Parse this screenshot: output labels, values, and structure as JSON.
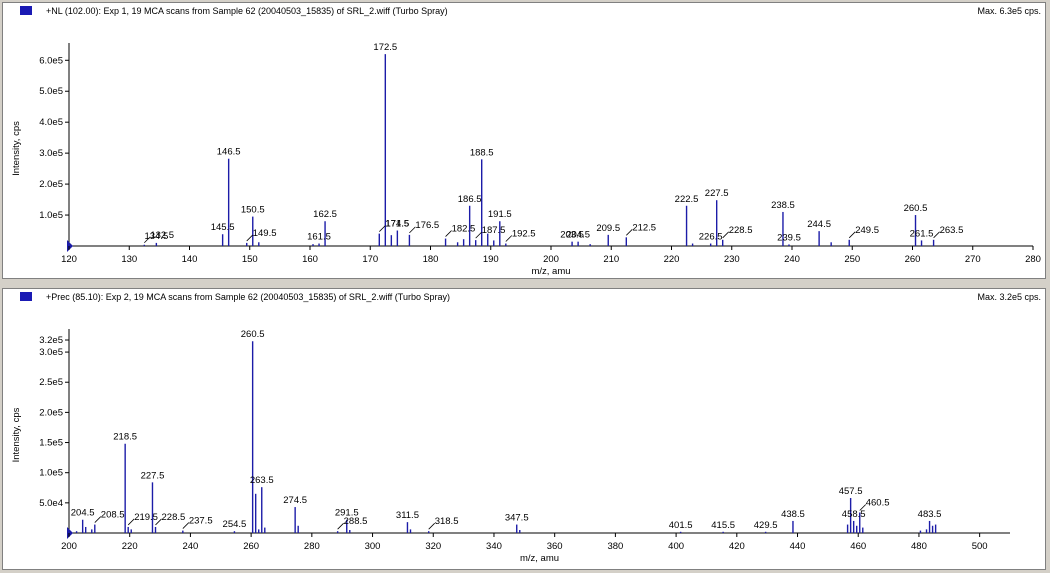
{
  "colors": {
    "peak": "#1c1ca8",
    "panel_bg": "#ffffff",
    "window_bg": "#d4d0c8"
  },
  "panels": [
    {
      "title": "+NL (102.00): Exp 1, 19 MCA scans from Sample 62 (20040503_15835) of SRL_2.wiff (Turbo Spray)",
      "max_label": "Max. 6.3e5 cps.",
      "icon": "spectrum-color-swatch-icon"
    },
    {
      "title": "+Prec (85.10): Exp 2, 19 MCA scans from Sample 62 (20040503_15835) of SRL_2.wiff (Turbo Spray)",
      "max_label": "Max. 3.2e5 cps.",
      "icon": "spectrum-color-swatch-icon"
    }
  ],
  "chart_data": [
    {
      "type": "bar",
      "xlabel": "m/z, amu",
      "ylabel": "Intensity, cps",
      "xlim": [
        120,
        280
      ],
      "ylim": [
        0,
        630000
      ],
      "x_ticks": [
        120,
        130,
        140,
        150,
        160,
        170,
        180,
        190,
        200,
        210,
        220,
        230,
        240,
        250,
        260,
        270,
        280
      ],
      "y_ticks": [
        100000,
        200000,
        300000,
        400000,
        500000,
        600000
      ],
      "y_tick_labels": [
        "1.0e5",
        "2.0e5",
        "3.0e5",
        "4.0e5",
        "5.0e5",
        "6.0e5"
      ],
      "peaks": [
        {
          "x": 132.5,
          "y": 4000
        },
        {
          "x": 134.5,
          "y": 10000
        },
        {
          "x": 145.5,
          "y": 38000
        },
        {
          "x": 146.5,
          "y": 282000
        },
        {
          "x": 149.5,
          "y": 10000
        },
        {
          "x": 150.5,
          "y": 95000
        },
        {
          "x": 151.5,
          "y": 12000
        },
        {
          "x": 160.5,
          "y": 6000
        },
        {
          "x": 161.5,
          "y": 8000
        },
        {
          "x": 162.5,
          "y": 80000
        },
        {
          "x": 171.5,
          "y": 40000
        },
        {
          "x": 172.5,
          "y": 620000
        },
        {
          "x": 173.5,
          "y": 35000
        },
        {
          "x": 174.5,
          "y": 50000
        },
        {
          "x": 176.5,
          "y": 36000
        },
        {
          "x": 182.5,
          "y": 24000
        },
        {
          "x": 184.5,
          "y": 12000
        },
        {
          "x": 185.5,
          "y": 22000
        },
        {
          "x": 186.5,
          "y": 130000
        },
        {
          "x": 187.5,
          "y": 19000
        },
        {
          "x": 188.5,
          "y": 280000
        },
        {
          "x": 189.5,
          "y": 40000
        },
        {
          "x": 190.5,
          "y": 18000
        },
        {
          "x": 191.5,
          "y": 80000
        },
        {
          "x": 192.5,
          "y": 8000
        },
        {
          "x": 203.5,
          "y": 14000
        },
        {
          "x": 204.5,
          "y": 14000
        },
        {
          "x": 206.5,
          "y": 6000
        },
        {
          "x": 209.5,
          "y": 36000
        },
        {
          "x": 212.5,
          "y": 28000
        },
        {
          "x": 222.5,
          "y": 130000
        },
        {
          "x": 223.5,
          "y": 8000
        },
        {
          "x": 226.5,
          "y": 8000
        },
        {
          "x": 227.5,
          "y": 148000
        },
        {
          "x": 228.5,
          "y": 20000
        },
        {
          "x": 238.5,
          "y": 110000
        },
        {
          "x": 239.5,
          "y": 5000
        },
        {
          "x": 244.5,
          "y": 48000
        },
        {
          "x": 246.5,
          "y": 12000
        },
        {
          "x": 249.5,
          "y": 20000
        },
        {
          "x": 260.5,
          "y": 100000
        },
        {
          "x": 261.5,
          "y": 18000
        },
        {
          "x": 263.5,
          "y": 20000
        }
      ],
      "labels": [
        {
          "x": 132.5,
          "text": "132.5",
          "leader": true
        },
        {
          "x": 134.5,
          "text": "134.5"
        },
        {
          "x": 145.5,
          "text": "145.5"
        },
        {
          "x": 146.5,
          "text": "146.5"
        },
        {
          "x": 149.5,
          "text": "149.5",
          "leader": true
        },
        {
          "x": 150.5,
          "text": "150.5"
        },
        {
          "x": 161.5,
          "text": "161.5"
        },
        {
          "x": 162.5,
          "text": "162.5"
        },
        {
          "x": 171.5,
          "text": "171.5",
          "leader": true
        },
        {
          "x": 172.5,
          "text": "172.5"
        },
        {
          "x": 174.5,
          "text": "174.5"
        },
        {
          "x": 176.5,
          "text": "176.5",
          "leader": true
        },
        {
          "x": 182.5,
          "text": "182.5",
          "leader": true
        },
        {
          "x": 186.5,
          "text": "186.5"
        },
        {
          "x": 187.5,
          "text": "187.5",
          "leader": true
        },
        {
          "x": 188.5,
          "text": "188.5"
        },
        {
          "x": 191.5,
          "text": "191.5"
        },
        {
          "x": 192.5,
          "text": "192.5",
          "leader": true
        },
        {
          "x": 203.5,
          "text": "203.5"
        },
        {
          "x": 204.5,
          "text": "204.5"
        },
        {
          "x": 209.5,
          "text": "209.5"
        },
        {
          "x": 212.5,
          "text": "212.5",
          "leader": true
        },
        {
          "x": 222.5,
          "text": "222.5"
        },
        {
          "x": 226.5,
          "text": "226.5"
        },
        {
          "x": 227.5,
          "text": "227.5"
        },
        {
          "x": 228.5,
          "text": "228.5",
          "leader": true
        },
        {
          "x": 238.5,
          "text": "238.5"
        },
        {
          "x": 239.5,
          "text": "239.5"
        },
        {
          "x": 244.5,
          "text": "244.5"
        },
        {
          "x": 249.5,
          "text": "249.5",
          "leader": true
        },
        {
          "x": 260.5,
          "text": "260.5"
        },
        {
          "x": 261.5,
          "text": "261.5"
        },
        {
          "x": 263.5,
          "text": "263.5",
          "leader": true
        }
      ]
    },
    {
      "type": "bar",
      "xlabel": "m/z, amu",
      "ylabel": "Intensity, cps",
      "xlim": [
        200,
        510
      ],
      "ylim": [
        0,
        325000
      ],
      "x_ticks": [
        200,
        220,
        240,
        260,
        280,
        300,
        320,
        340,
        360,
        380,
        400,
        420,
        440,
        460,
        480,
        500
      ],
      "y_ticks": [
        50000,
        100000,
        150000,
        200000,
        250000,
        300000,
        320000
      ],
      "y_tick_labels": [
        "5.0e4",
        "1.0e5",
        "1.5e5",
        "2.0e5",
        "2.5e5",
        "3.0e5",
        "3.2e5"
      ],
      "peaks": [
        {
          "x": 202.5,
          "y": 3000
        },
        {
          "x": 204.5,
          "y": 22000
        },
        {
          "x": 205.5,
          "y": 10000
        },
        {
          "x": 207.5,
          "y": 6000
        },
        {
          "x": 208.5,
          "y": 14000
        },
        {
          "x": 218.5,
          "y": 148000
        },
        {
          "x": 219.5,
          "y": 10000
        },
        {
          "x": 220.5,
          "y": 6000
        },
        {
          "x": 227.5,
          "y": 84000
        },
        {
          "x": 228.5,
          "y": 10000
        },
        {
          "x": 237.5,
          "y": 4000
        },
        {
          "x": 254.5,
          "y": 3000
        },
        {
          "x": 260.5,
          "y": 318000
        },
        {
          "x": 261.5,
          "y": 65000
        },
        {
          "x": 262.5,
          "y": 6000
        },
        {
          "x": 263.5,
          "y": 76000
        },
        {
          "x": 264.5,
          "y": 9000
        },
        {
          "x": 274.5,
          "y": 43000
        },
        {
          "x": 275.5,
          "y": 12000
        },
        {
          "x": 288.5,
          "y": 3000
        },
        {
          "x": 291.5,
          "y": 22000
        },
        {
          "x": 292.5,
          "y": 5000
        },
        {
          "x": 311.5,
          "y": 18000
        },
        {
          "x": 312.5,
          "y": 6000
        },
        {
          "x": 318.5,
          "y": 3000
        },
        {
          "x": 347.5,
          "y": 14000
        },
        {
          "x": 348.5,
          "y": 5000
        },
        {
          "x": 401.5,
          "y": 2000
        },
        {
          "x": 415.5,
          "y": 2000
        },
        {
          "x": 429.5,
          "y": 2000
        },
        {
          "x": 438.5,
          "y": 20000
        },
        {
          "x": 456.5,
          "y": 14000
        },
        {
          "x": 457.5,
          "y": 58000
        },
        {
          "x": 458.5,
          "y": 20000
        },
        {
          "x": 459.5,
          "y": 12000
        },
        {
          "x": 460.5,
          "y": 34000
        },
        {
          "x": 461.5,
          "y": 9000
        },
        {
          "x": 480.5,
          "y": 4000
        },
        {
          "x": 482.5,
          "y": 6000
        },
        {
          "x": 483.5,
          "y": 20000
        },
        {
          "x": 484.5,
          "y": 12000
        },
        {
          "x": 485.5,
          "y": 14000
        }
      ],
      "labels": [
        {
          "x": 204.5,
          "text": "204.5"
        },
        {
          "x": 208.5,
          "text": "208.5",
          "leader": true
        },
        {
          "x": 218.5,
          "text": "218.5"
        },
        {
          "x": 219.5,
          "text": "219.5",
          "leader": true
        },
        {
          "x": 227.5,
          "text": "227.5"
        },
        {
          "x": 228.5,
          "text": "228.5",
          "leader": true
        },
        {
          "x": 237.5,
          "text": "237.5",
          "leader": true
        },
        {
          "x": 254.5,
          "text": "254.5"
        },
        {
          "x": 260.5,
          "text": "260.5"
        },
        {
          "x": 263.5,
          "text": "263.5"
        },
        {
          "x": 274.5,
          "text": "274.5"
        },
        {
          "x": 288.5,
          "text": "288.5",
          "leader": true
        },
        {
          "x": 291.5,
          "text": "291.5"
        },
        {
          "x": 311.5,
          "text": "311.5"
        },
        {
          "x": 318.5,
          "text": "318.5",
          "leader": true
        },
        {
          "x": 347.5,
          "text": "347.5"
        },
        {
          "x": 401.5,
          "text": "401.5"
        },
        {
          "x": 415.5,
          "text": "415.5"
        },
        {
          "x": 429.5,
          "text": "429.5"
        },
        {
          "x": 438.5,
          "text": "438.5"
        },
        {
          "x": 457.5,
          "text": "457.5"
        },
        {
          "x": 458.5,
          "text": "458.5"
        },
        {
          "x": 460.5,
          "text": "460.5",
          "leader": true
        },
        {
          "x": 483.5,
          "text": "483.5"
        }
      ]
    }
  ]
}
